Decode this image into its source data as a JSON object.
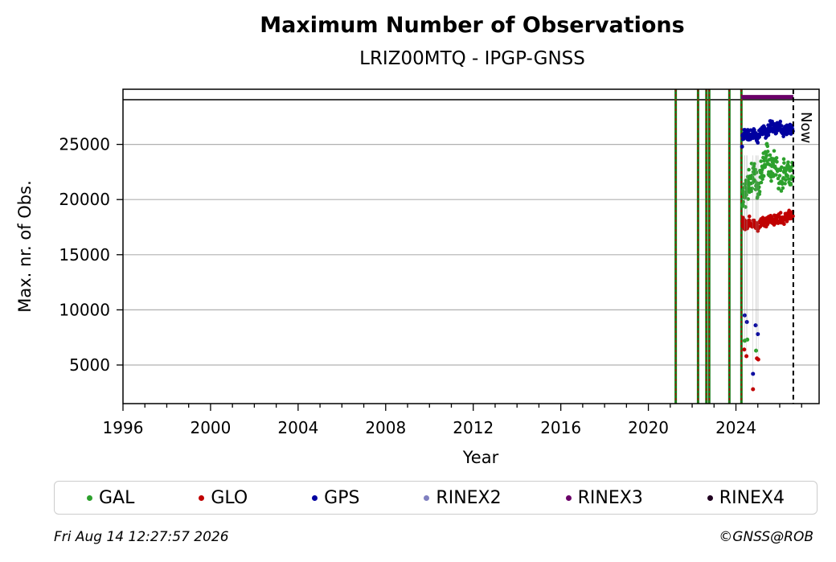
{
  "chart_data": {
    "type": "scatter",
    "title": "Maximum Number of Observations",
    "subtitle": "LRIZ00MTQ - IPGP-GNSS",
    "xlabel": "Year",
    "ylabel": "Max. nr. of Obs.",
    "xlim": [
      1996,
      2027.8
    ],
    "ylim": [
      1500,
      30000
    ],
    "x_ticks": [
      1996,
      2000,
      2004,
      2008,
      2012,
      2016,
      2020,
      2024
    ],
    "y_ticks": [
      5000,
      10000,
      15000,
      20000,
      25000
    ],
    "grid": "horizontal",
    "now_label": "Now",
    "now_x": 2026.62,
    "events": [
      2021.25,
      2022.27,
      2022.65,
      2022.78,
      2023.7,
      2024.25
    ],
    "colors": {
      "GAL": "#2ca02c",
      "GLO": "#c00000",
      "GPS": "#0000a0",
      "RINEX2": "#8080c0",
      "RINEX3": "#6a0068",
      "RINEX4": "#200020",
      "event_line": "#1a7a1a"
    },
    "rinex3_span": [
      2024.25,
      2026.62
    ],
    "rinex3_y": 29300,
    "series": [
      {
        "name": "GPS",
        "x": [
          2024.3,
          2024.45,
          2024.6,
          2024.8,
          2025.0,
          2025.2,
          2025.4,
          2025.6,
          2025.8,
          2026.0,
          2026.2,
          2026.4,
          2026.6
        ],
        "y": [
          25800,
          26100,
          25700,
          26000,
          25600,
          26300,
          26000,
          26800,
          26400,
          26900,
          26100,
          26500,
          26200
        ]
      },
      {
        "name": "GAL",
        "x": [
          2024.3,
          2024.45,
          2024.6,
          2024.8,
          2025.0,
          2025.2,
          2025.4,
          2025.6,
          2025.8,
          2026.0,
          2026.2,
          2026.4,
          2026.6
        ],
        "y": [
          19500,
          20500,
          21500,
          22500,
          21000,
          23000,
          24000,
          22500,
          23500,
          21500,
          22500,
          23000,
          22000
        ]
      },
      {
        "name": "GLO",
        "x": [
          2024.3,
          2024.45,
          2024.6,
          2024.8,
          2025.0,
          2025.2,
          2025.4,
          2025.6,
          2025.8,
          2026.0,
          2026.2,
          2026.4,
          2026.6
        ],
        "y": [
          18000,
          17600,
          18100,
          17800,
          17500,
          18200,
          17900,
          18300,
          18100,
          18400,
          18200,
          18600,
          18500
        ]
      }
    ],
    "outliers": {
      "GPS": {
        "x": [
          2024.28,
          2024.4,
          2024.5,
          2024.78,
          2024.9,
          2025.0
        ],
        "y": [
          24800,
          9500,
          8900,
          4200,
          8600,
          7800
        ]
      },
      "GAL": {
        "x": [
          2024.4,
          2024.52,
          2024.92
        ],
        "y": [
          7200,
          7300,
          6300
        ]
      },
      "GLO": {
        "x": [
          2024.38,
          2024.48,
          2024.78,
          2024.96,
          2025.02
        ],
        "y": [
          6400,
          5800,
          2800,
          5600,
          5500
        ]
      }
    }
  },
  "legend": {
    "items": [
      {
        "label": "GAL",
        "color": "#2ca02c"
      },
      {
        "label": "GLO",
        "color": "#c00000"
      },
      {
        "label": "GPS",
        "color": "#0000a0"
      },
      {
        "label": "RINEX2",
        "color": "#8080c0"
      },
      {
        "label": "RINEX3",
        "color": "#6a0068"
      },
      {
        "label": "RINEX4",
        "color": "#200020"
      }
    ]
  },
  "footer": {
    "timestamp": "Fri Aug 14 12:27:57 2026",
    "credit": "©GNSS@ROB"
  }
}
